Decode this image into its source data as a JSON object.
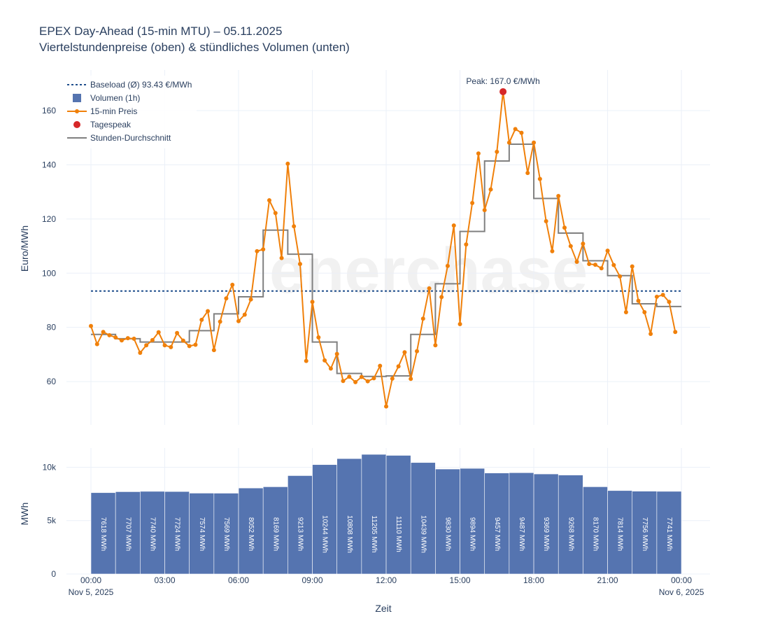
{
  "title": "EPEX Day-Ahead (15-min MTU) – 05.11.2025",
  "subtitle": "Viertelstundenpreise (oben) & stündliches Volumen (unten)",
  "watermark": "enerchase",
  "colors": {
    "price": "#f0800a",
    "volume": "#5574b0",
    "baseload": "#1f4e8c",
    "hourly": "#808080",
    "peak": "#d62728"
  },
  "chart_data": [
    {
      "type": "line",
      "title": "Viertelstundenpreise",
      "ylabel": "Euro/MWh",
      "ylim": [
        44,
        175
      ],
      "y_ticks": [
        "60",
        "80",
        "100",
        "120",
        "140",
        "160"
      ],
      "grid": true,
      "legend_position": "top-left",
      "legend": [
        "Baseload (Ø) 93.43 €/MWh",
        "Volumen (1h)",
        "15-min Preis",
        "Tagespeak",
        "Stunden-Durchschnitt"
      ],
      "baseload": 93.43,
      "peak": {
        "label": "Peak: 167.0 €/MWh",
        "hour": 16.75,
        "value": 167.0
      },
      "price_15min": [
        80.5,
        73.8,
        78.3,
        77.1,
        76.3,
        75.2,
        76.0,
        75.8,
        70.6,
        73.4,
        75.3,
        78.2,
        73.4,
        72.7,
        77.9,
        75.1,
        73.1,
        73.6,
        82.8,
        86.0,
        71.6,
        82.1,
        90.7,
        95.7,
        82.3,
        84.7,
        90.3,
        108.1,
        108.8,
        126.9,
        122.2,
        105.6,
        140.4,
        117.3,
        103.4,
        67.6,
        89.4,
        76.3,
        67.8,
        64.8,
        70.2,
        60.2,
        61.8,
        59.8,
        61.7,
        60.1,
        61.2,
        65.8,
        50.8,
        61.1,
        65.6,
        70.8,
        61.0,
        71.2,
        83.2,
        94.4,
        73.4,
        91.2,
        102.7,
        117.6,
        81.2,
        110.6,
        125.9,
        144.2,
        123.3,
        130.9,
        144.8,
        167.0,
        148.2,
        153.2,
        151.8,
        137.0,
        148.2,
        134.8,
        119.2,
        108.1,
        128.5,
        116.8,
        110.0,
        104.2,
        110.9,
        103.4,
        103.1,
        101.8,
        108.3,
        103.0,
        98.8,
        85.6,
        102.5,
        89.8,
        85.6,
        77.6,
        91.3,
        92.0,
        89.4,
        78.3
      ],
      "hourly_avg": [
        77.4,
        75.8,
        74.6,
        74.6,
        78.8,
        85.0,
        91.3,
        115.9,
        107.0,
        74.6,
        63.0,
        61.9,
        62.1,
        77.4,
        96.1,
        115.4,
        141.4,
        147.6,
        127.6,
        114.8,
        104.6,
        99.1,
        88.7,
        87.7
      ]
    },
    {
      "type": "bar",
      "title": "Stündliches Volumen",
      "ylabel": "MWh",
      "xlabel": "Zeit",
      "ylim": [
        0,
        11800
      ],
      "y_ticks": [
        "0",
        "5k",
        "10k"
      ],
      "x_ticks": [
        "00:00",
        "03:00",
        "06:00",
        "09:00",
        "12:00",
        "15:00",
        "18:00",
        "21:00",
        "00:00"
      ],
      "date_start": "Nov 5, 2025",
      "date_end": "Nov 6, 2025",
      "values": [
        7618,
        7707,
        7740,
        7724,
        7574,
        7569,
        8052,
        8169,
        9213,
        10244,
        10808,
        11205,
        11110,
        10439,
        9830,
        9894,
        9457,
        9487,
        9369,
        9268,
        8170,
        7814,
        7756,
        7741
      ],
      "value_labels": [
        "7618 MWh",
        "7707 MWh",
        "7740 MWh",
        "7724 MWh",
        "7574 MWh",
        "7569 MWh",
        "8052 MWh",
        "8169 MWh",
        "9213 MWh",
        "10244 MWh",
        "10808 MWh",
        "11205 MWh",
        "11110 MWh",
        "10439 MWh",
        "9830 MWh",
        "9894 MWh",
        "9457 MWh",
        "9487 MWh",
        "9369 MWh",
        "9268 MWh",
        "8170 MWh",
        "7814 MWh",
        "7756 MWh",
        "7741 MWh"
      ]
    }
  ]
}
